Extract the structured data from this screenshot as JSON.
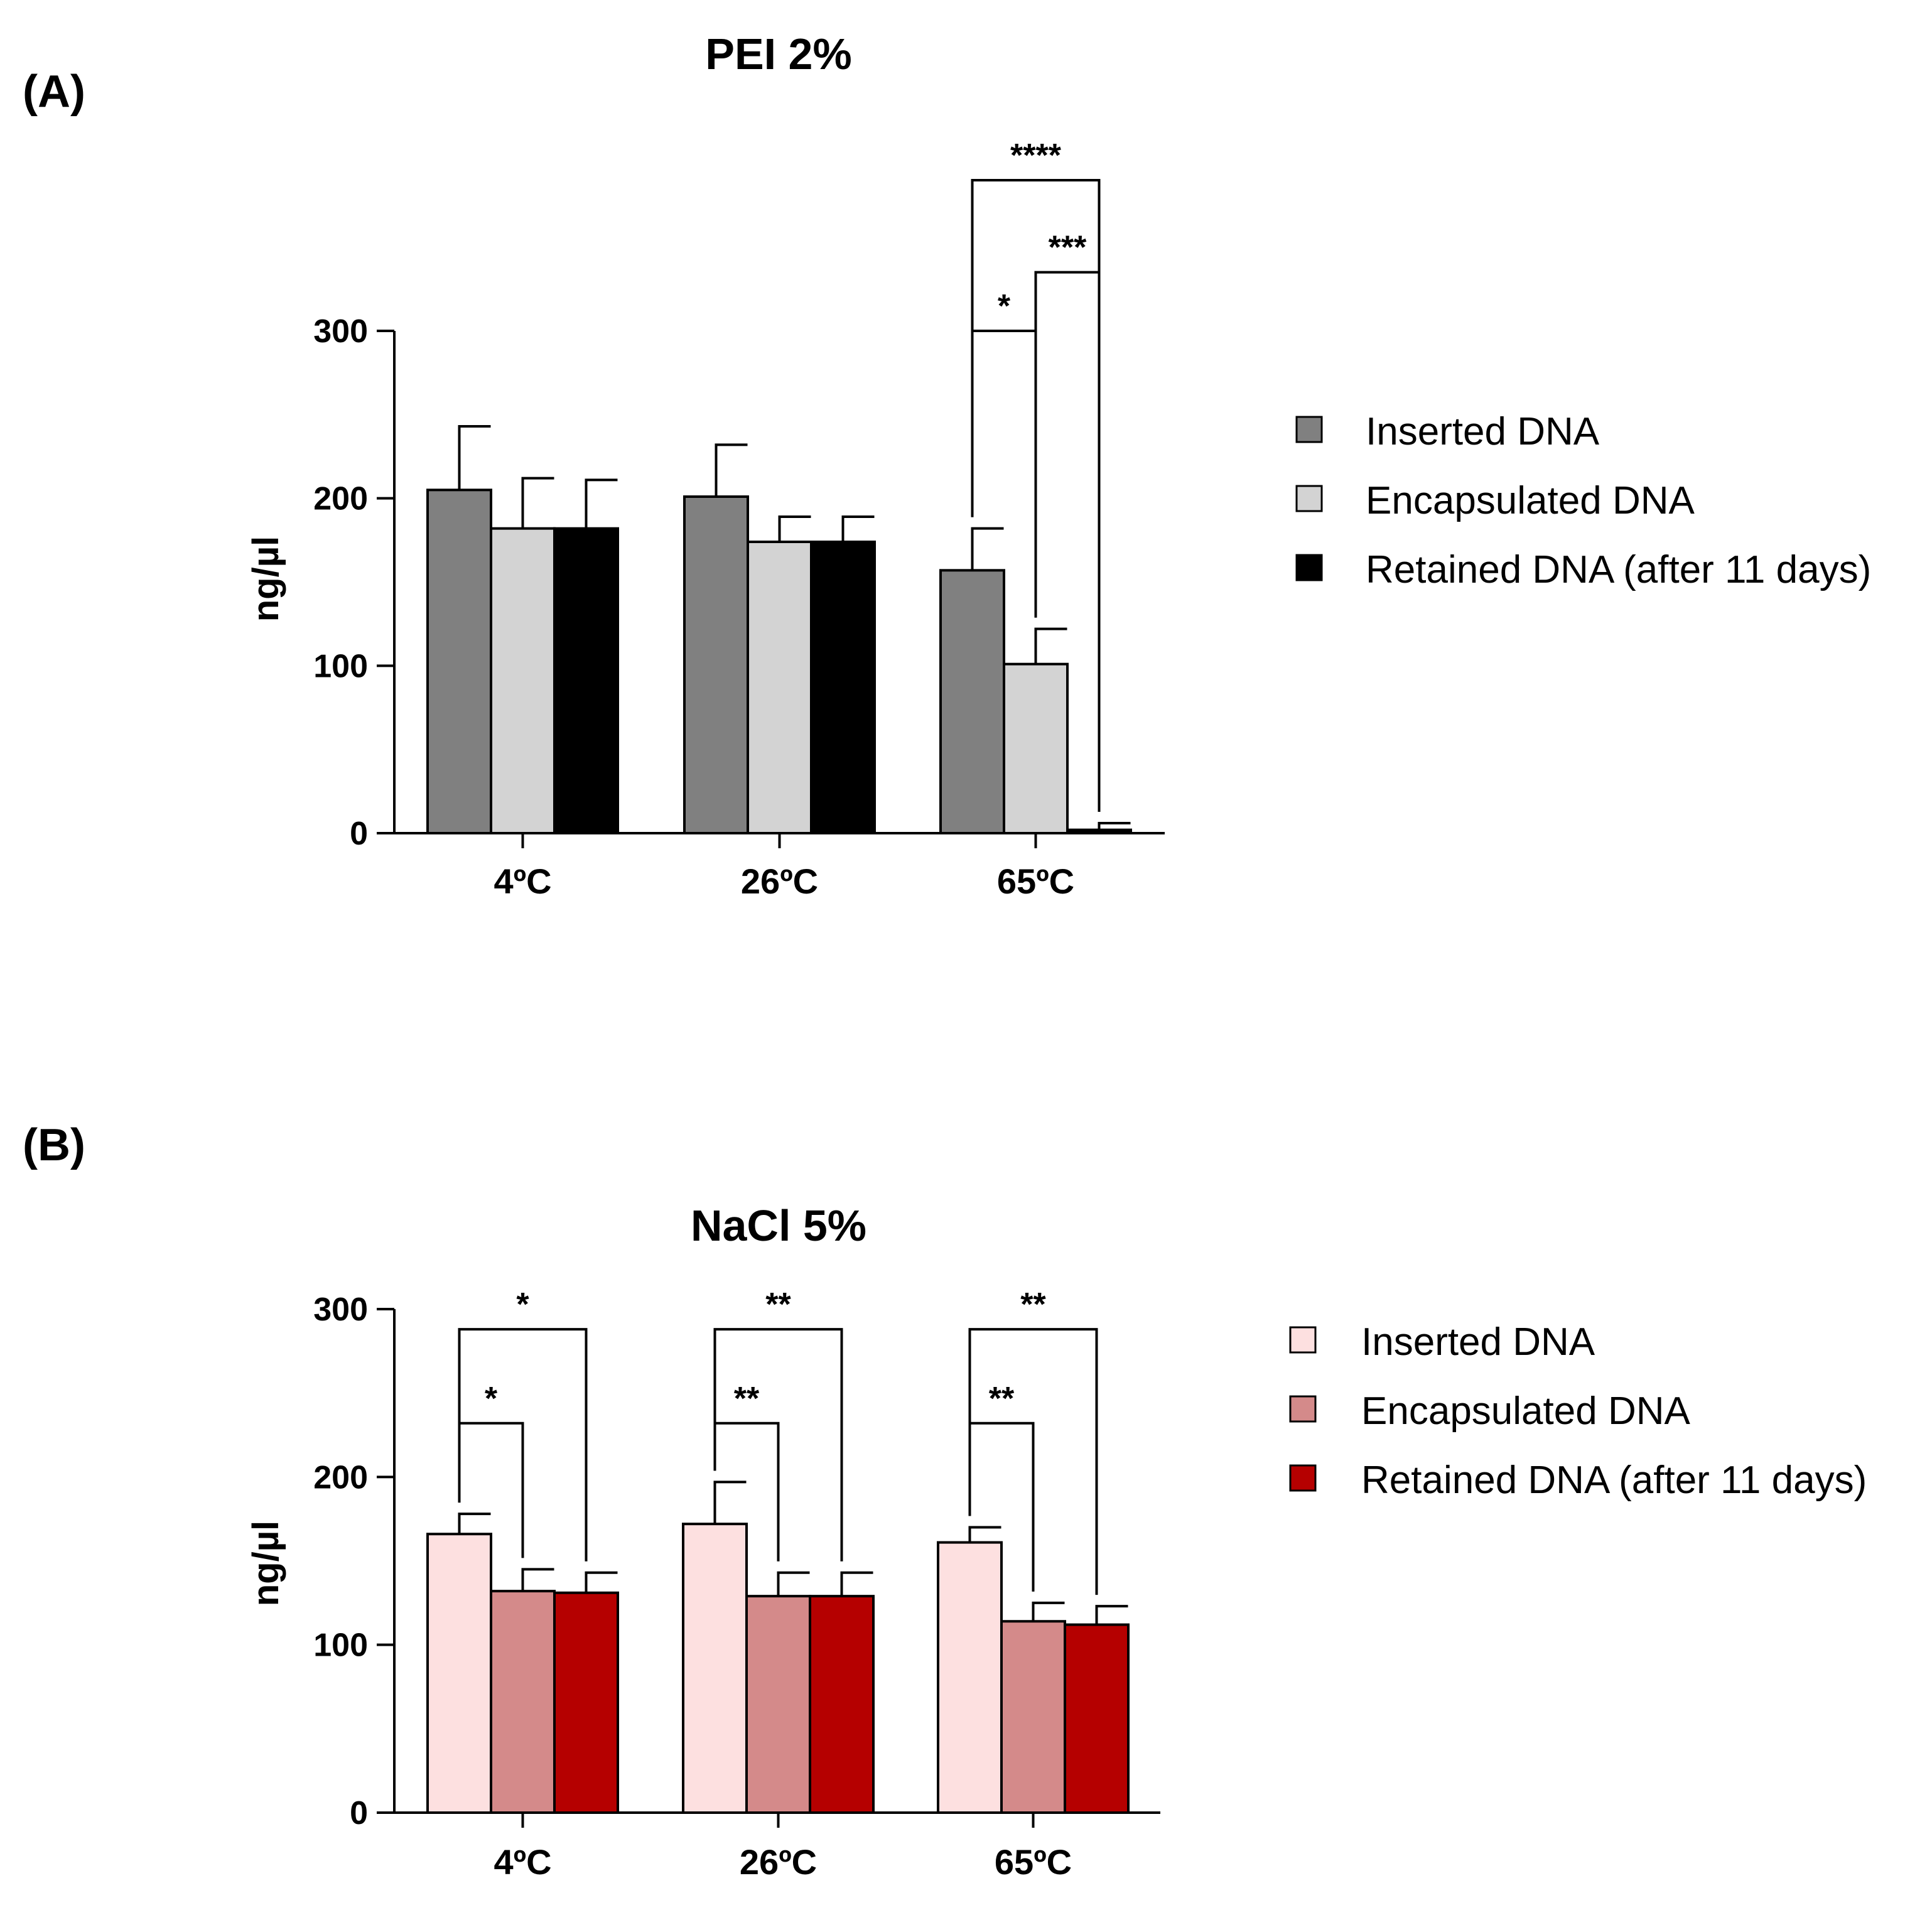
{
  "panels": [
    {
      "panel_label": "(A)",
      "legend": [
        {
          "name": "Inserted DNA",
          "color": "#808080"
        },
        {
          "name": "Encapsulated DNA",
          "color": "#d3d3d3"
        },
        {
          "name": "Retained DNA (after 11 days)",
          "color": "#000000"
        }
      ]
    },
    {
      "panel_label": "(B)",
      "legend": [
        {
          "name": "Inserted DNA",
          "color": "#fde0e0"
        },
        {
          "name": "Encapsulated DNA",
          "color": "#d48a8a"
        },
        {
          "name": "Retained DNA (after 11 days)",
          "color": "#b50000"
        }
      ]
    }
  ],
  "chart_data": [
    {
      "type": "bar",
      "title": "PEI 2%",
      "xlabel": "",
      "ylabel": "ng/µl",
      "ylim": [
        0,
        300
      ],
      "yticks": [
        0,
        100,
        200,
        300
      ],
      "categories": [
        "4ºC",
        "26ºC",
        "65ºC"
      ],
      "series": [
        {
          "name": "Inserted DNA",
          "color": "#808080",
          "values": [
            205,
            201,
            157
          ],
          "errors": [
            38,
            31,
            25
          ]
        },
        {
          "name": "Encapsulated DNA",
          "color": "#d3d3d3",
          "values": [
            182,
            174,
            101
          ],
          "errors": [
            30,
            15,
            21
          ]
        },
        {
          "name": "Retained DNA (after 11 days)",
          "color": "#000000",
          "values": [
            182,
            174,
            2
          ],
          "errors": [
            29,
            15,
            4
          ]
        }
      ],
      "significance": [
        {
          "category": 2,
          "from": 0,
          "to": 1,
          "label": "*",
          "level": 300
        },
        {
          "category": 2,
          "from": 1,
          "to": 2,
          "label": "***",
          "level": 335
        },
        {
          "category": 2,
          "from": 0,
          "to": 2,
          "label": "****",
          "level": 390
        }
      ]
    },
    {
      "type": "bar",
      "title": "NaCl 5%",
      "xlabel": "",
      "ylabel": "ng/µl",
      "ylim": [
        0,
        300
      ],
      "yticks": [
        0,
        100,
        200,
        300
      ],
      "categories": [
        "4ºC",
        "26ºC",
        "65ºC"
      ],
      "series": [
        {
          "name": "Inserted DNA",
          "color": "#fde0e0",
          "values": [
            166,
            172,
            161
          ],
          "errors": [
            12,
            25,
            9
          ]
        },
        {
          "name": "Encapsulated DNA",
          "color": "#d48a8a",
          "values": [
            132,
            129,
            114
          ],
          "errors": [
            13,
            14,
            11
          ]
        },
        {
          "name": "Retained DNA (after 11 days)",
          "color": "#b50000",
          "values": [
            131,
            129,
            112
          ],
          "errors": [
            12,
            14,
            11
          ]
        }
      ],
      "significance": [
        {
          "category": 0,
          "from": 0,
          "to": 1,
          "label": "*",
          "level": 232
        },
        {
          "category": 0,
          "from": 0,
          "to": 2,
          "label": "*",
          "level": 288
        },
        {
          "category": 1,
          "from": 0,
          "to": 1,
          "label": "**",
          "level": 232
        },
        {
          "category": 1,
          "from": 0,
          "to": 2,
          "label": "**",
          "level": 288
        },
        {
          "category": 2,
          "from": 0,
          "to": 1,
          "label": "**",
          "level": 232
        },
        {
          "category": 2,
          "from": 0,
          "to": 2,
          "label": "**",
          "level": 288
        }
      ]
    }
  ]
}
